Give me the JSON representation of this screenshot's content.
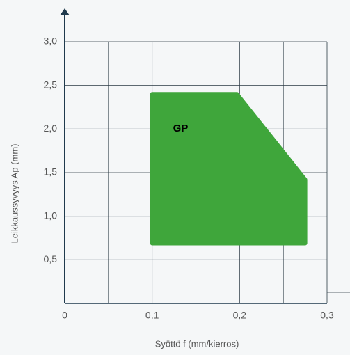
{
  "chart_data": {
    "type": "polygon",
    "xlabel": "Syöttö f (mm/kierros)",
    "ylabel": "Leikkaussyvyys Ap (mm)",
    "xlim": [
      0,
      0.3
    ],
    "ylim": [
      0,
      3
    ],
    "xticks": [
      0,
      {
        "value": 0.1,
        "label": "0,1"
      },
      {
        "value": 0.2,
        "label": "0,2"
      },
      {
        "value": 0.3,
        "label": "0,3"
      }
    ],
    "x_gridlines": [
      0.05,
      0.15,
      0.25
    ],
    "yticks": [
      {
        "value": 0.5,
        "label": "0,5"
      },
      {
        "value": 1,
        "label": "1,0"
      },
      {
        "value": 1.5,
        "label": "1,5"
      },
      {
        "value": 2,
        "label": "2,0"
      },
      {
        "value": 2.5,
        "label": "2,5"
      },
      {
        "value": 3,
        "label": "3,0"
      }
    ],
    "grid": true,
    "series": [
      {
        "name": "GP",
        "color": "#3fa63b",
        "x": [
          0.1,
          0.197,
          0.275,
          0.275,
          0.1
        ],
        "y": [
          2.4,
          2.4,
          1.42,
          0.69,
          0.69
        ]
      }
    ]
  }
}
